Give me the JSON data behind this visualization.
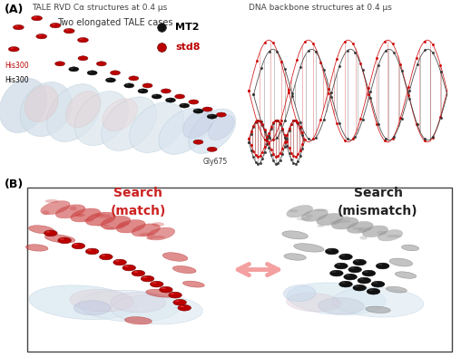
{
  "fig_width": 5.08,
  "fig_height": 3.94,
  "dpi": 100,
  "bg_color": "#ffffff",
  "panel_A_label": "(A)",
  "panel_A_title_left": "TALE RVD Cα structures at 0.4 μs",
  "panel_A_title_right": "DNA backbone structures at 0.4 μs",
  "panel_A_subtitle": "Two elongated TALE cases",
  "legend_MT2": "MT2",
  "legend_std8": "std8",
  "label_His300_red": "His300",
  "label_His300_black": "His300",
  "label_Gly675": "Gly675",
  "panel_B_label": "(B)",
  "panel_B_left_line1": "Search",
  "panel_B_left_line2": "(match)",
  "panel_B_right_line1": "Search",
  "panel_B_right_line2": "(mismatch)",
  "arrow_color": "#f4a0a0",
  "match_text_color": "#cc2222",
  "mismatch_text_color": "#222222",
  "red_dot_color": "#bb0000",
  "black_dot_color": "#111111",
  "panel_B_box_color": "#444444",
  "protein_surface_color": "#d8e8f0",
  "protein_surface_edge": "#b0c8d8",
  "protein_pink_color": "#e8b0b0",
  "protein_blue_color": "#b0b8d8",
  "ribbon_red_color": "#cc4444",
  "ribbon_gray_color": "#999999"
}
